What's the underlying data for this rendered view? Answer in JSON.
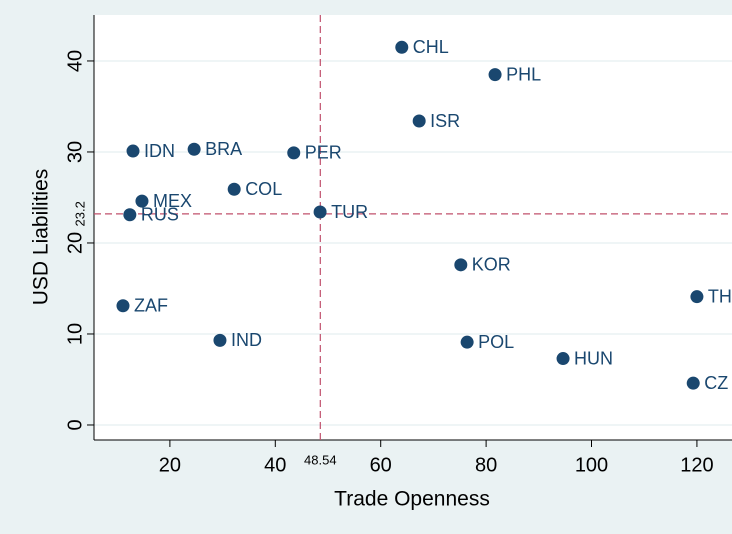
{
  "chart_data": {
    "type": "scatter",
    "x_label": "Trade Openness",
    "y_label": "USD Liabilities",
    "labels": [
      "CHL",
      "PHL",
      "ISR",
      "IDN",
      "BRA",
      "PER",
      "COL",
      "MEX",
      "RUS",
      "TUR",
      "KOR",
      "ZAF",
      "IND",
      "POL",
      "HUN",
      "TH",
      "CZ"
    ],
    "x": [
      64.0,
      81.7,
      67.3,
      13.0,
      24.6,
      43.5,
      32.2,
      14.7,
      12.4,
      48.5,
      75.2,
      11.1,
      29.5,
      76.4,
      94.6,
      120.0,
      119.3
    ],
    "values": [
      41.5,
      38.5,
      33.4,
      30.1,
      30.3,
      29.9,
      25.9,
      24.6,
      23.1,
      23.4,
      17.6,
      13.1,
      9.3,
      9.1,
      7.3,
      14.1,
      4.6
    ],
    "color": "#1a476f",
    "xlim": [
      5.6,
      124
    ],
    "ylim": [
      -1.65,
      45.05
    ],
    "xticks": [
      20,
      40,
      60,
      80,
      100,
      120
    ],
    "yticks": [
      0,
      10,
      20,
      30,
      40
    ],
    "grid": true,
    "ref_line_x": 48.54,
    "ref_line_y": 23.2,
    "ref_line_color": "#c0506c"
  }
}
